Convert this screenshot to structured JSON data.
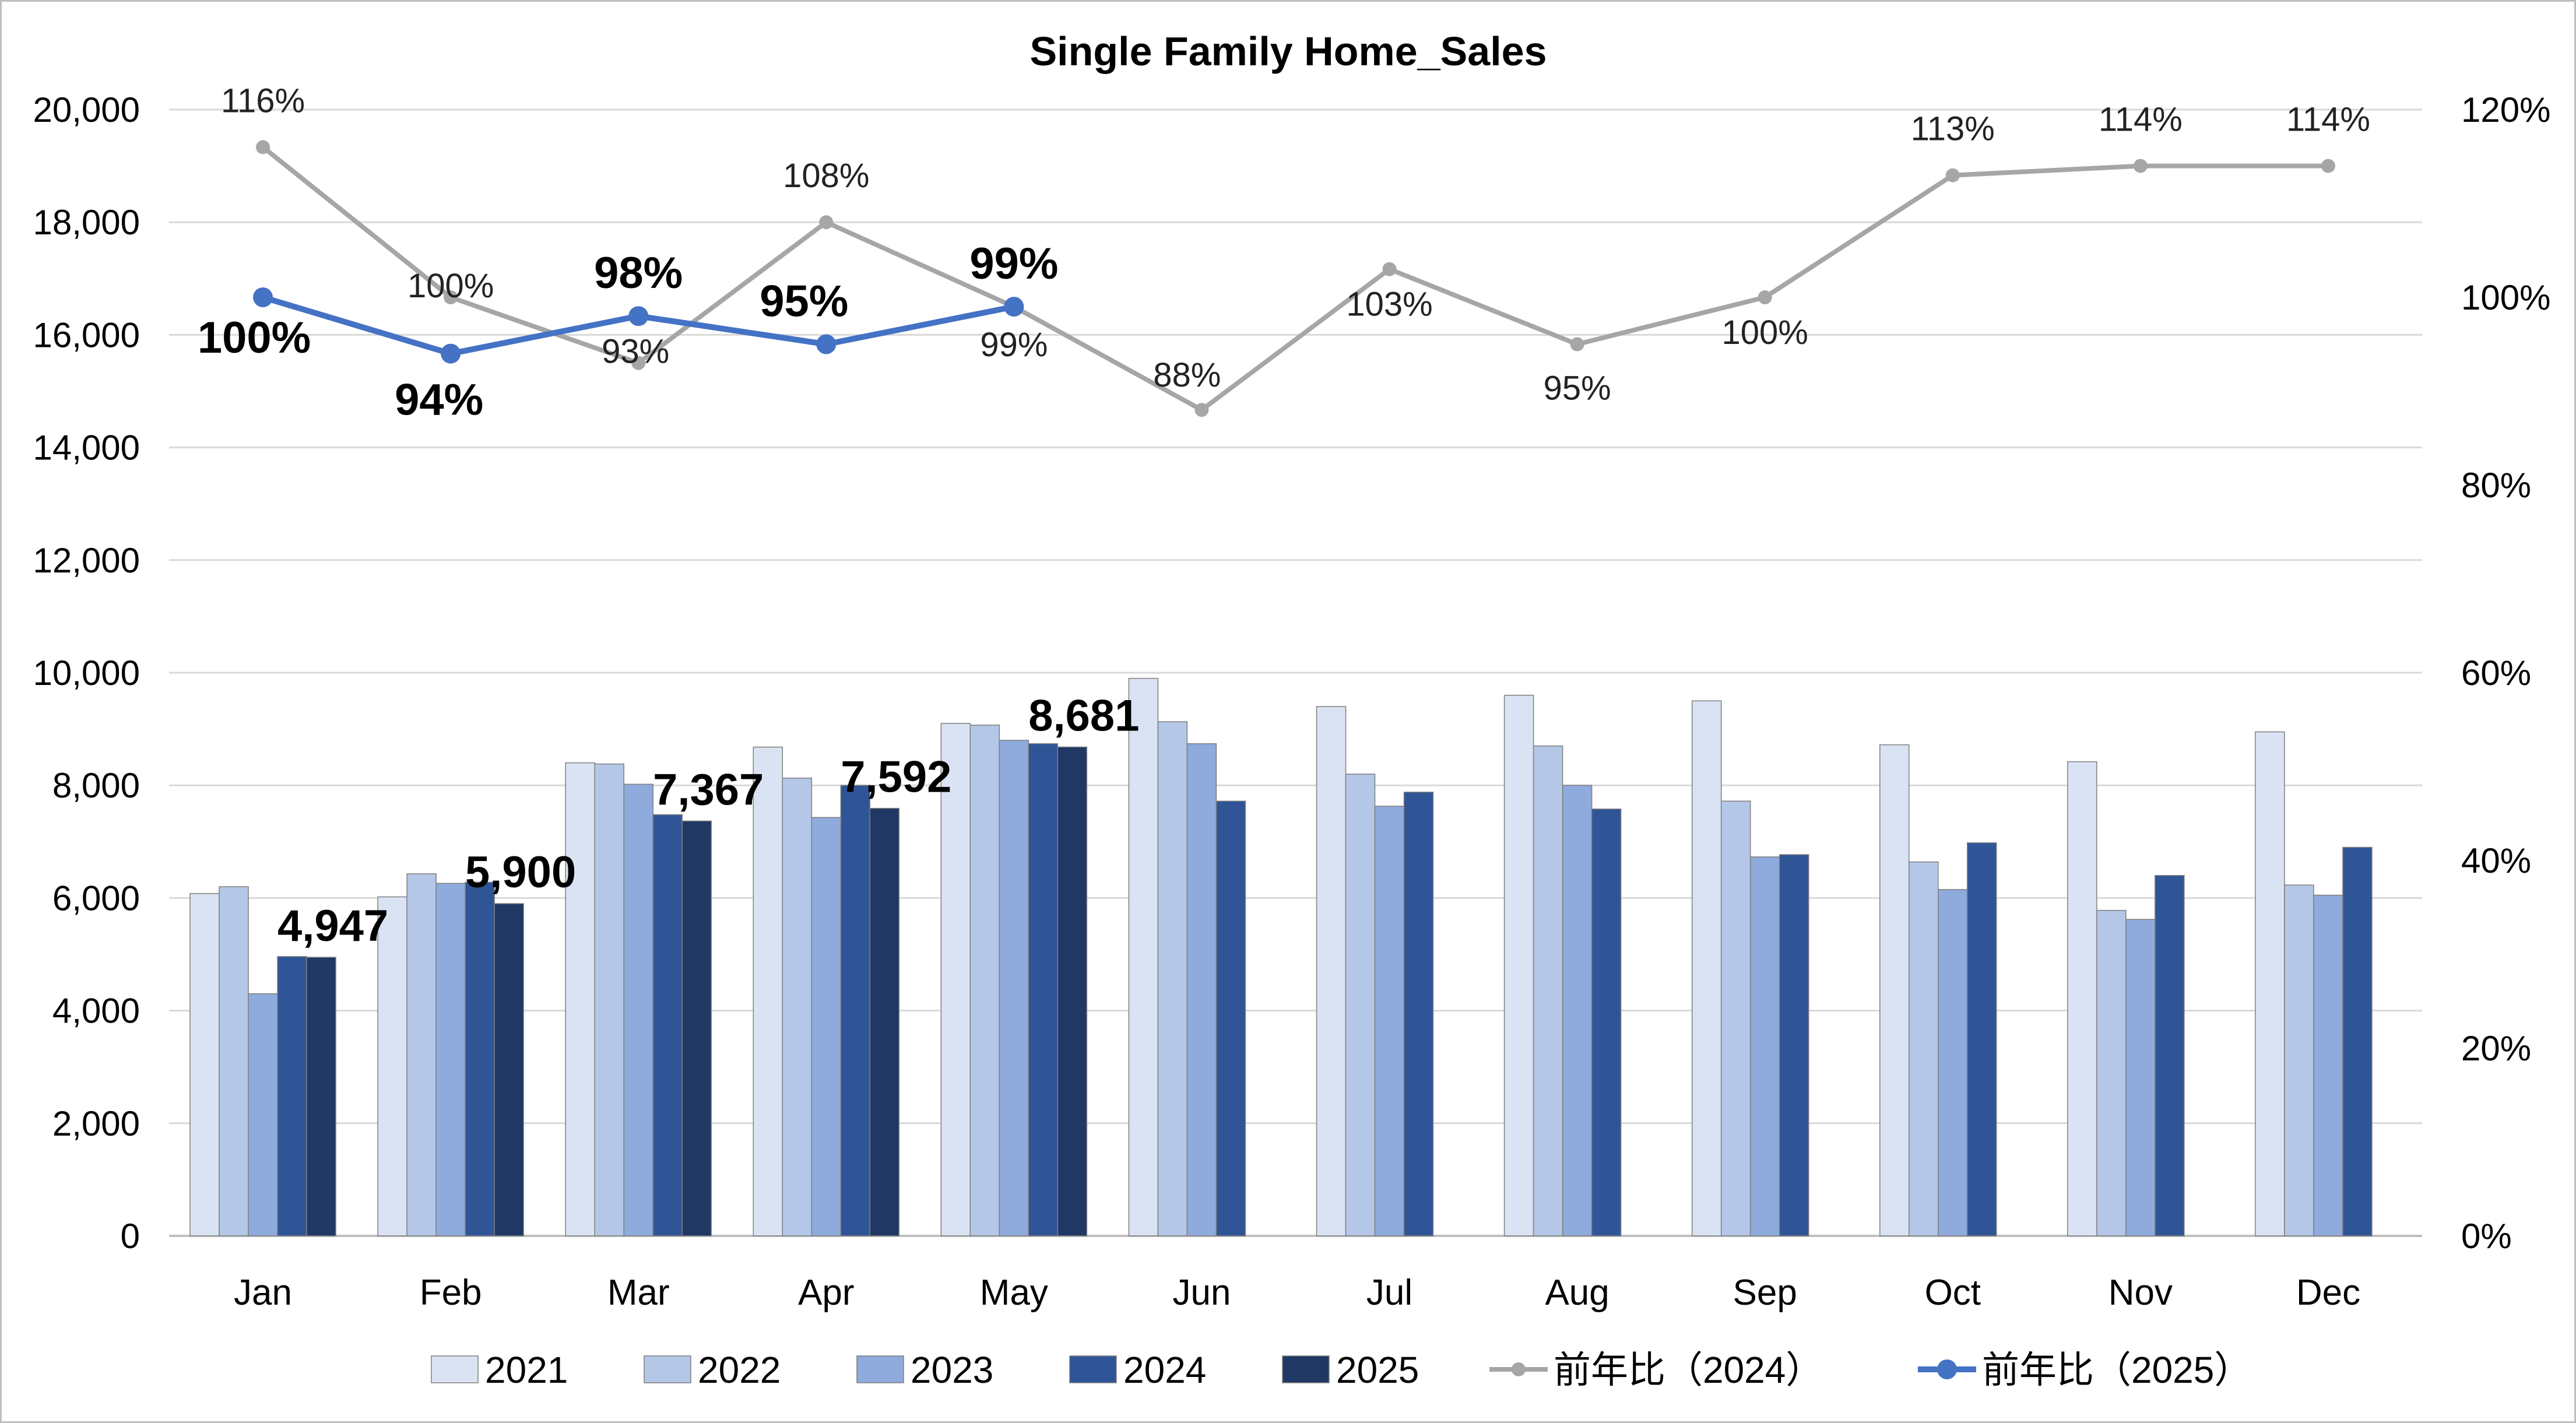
{
  "chart_data": {
    "type": "bar",
    "title": "Single Family Home_Sales",
    "categories": [
      "Jan",
      "Feb",
      "Mar",
      "Apr",
      "May",
      "Jun",
      "Jul",
      "Aug",
      "Sep",
      "Oct",
      "Nov",
      "Dec"
    ],
    "ylim": [
      0,
      20000
    ],
    "y_ticks": [
      "0",
      "2,000",
      "4,000",
      "6,000",
      "8,000",
      "10,000",
      "12,000",
      "14,000",
      "16,000",
      "18,000",
      "20,000"
    ],
    "y2lim": [
      0,
      120
    ],
    "y2_ticks": [
      "0%",
      "20%",
      "40%",
      "60%",
      "80%",
      "100%",
      "120%"
    ],
    "grid": true,
    "legend_position": "bottom",
    "series": [
      {
        "name": "2021",
        "type": "bar",
        "color": "#dae3f3",
        "values": [
          6080,
          6020,
          8400,
          8680,
          9100,
          9900,
          9400,
          9600,
          9500,
          8720,
          8420,
          8950
        ]
      },
      {
        "name": "2022",
        "type": "bar",
        "color": "#b4c7e7",
        "values": [
          6200,
          6430,
          8380,
          8130,
          9070,
          9130,
          8200,
          8700,
          7720,
          6640,
          5780,
          6230
        ]
      },
      {
        "name": "2023",
        "type": "bar",
        "color": "#8faadc",
        "values": [
          4300,
          6260,
          8020,
          7430,
          8800,
          8740,
          7630,
          8000,
          6730,
          6150,
          5620,
          6050
        ]
      },
      {
        "name": "2024",
        "type": "bar",
        "color": "#2f5597",
        "values": [
          4960,
          6280,
          7480,
          8000,
          8740,
          7720,
          7880,
          7580,
          6770,
          6980,
          6400,
          6900
        ]
      },
      {
        "name": "2025",
        "type": "bar",
        "color": "#1f3864",
        "values": [
          4947,
          5900,
          7367,
          7592,
          8681,
          null,
          null,
          null,
          null,
          null,
          null,
          null
        ],
        "labels": [
          "4,947",
          "5,900",
          "7,367",
          "7,592",
          "8,681",
          null,
          null,
          null,
          null,
          null,
          null,
          null
        ]
      },
      {
        "name": "前年比（2024）",
        "type": "line",
        "axis": "right",
        "color": "#a6a6a6",
        "values": [
          116,
          100,
          93,
          108,
          99,
          88,
          103,
          95,
          100,
          113,
          114,
          114
        ],
        "labels": [
          "116%",
          "100%",
          "93%",
          "108%",
          "99%",
          "88%",
          "103%",
          "95%",
          "100%",
          "113%",
          "114%",
          "114%"
        ]
      },
      {
        "name": "前年比（2025）",
        "type": "line",
        "axis": "right",
        "color": "#4472c4",
        "values": [
          100,
          94,
          98,
          95,
          99,
          null,
          null,
          null,
          null,
          null,
          null,
          null
        ],
        "labels": [
          "100%",
          "94%",
          "98%",
          "95%",
          "99%",
          null,
          null,
          null,
          null,
          null,
          null,
          null
        ]
      }
    ]
  }
}
